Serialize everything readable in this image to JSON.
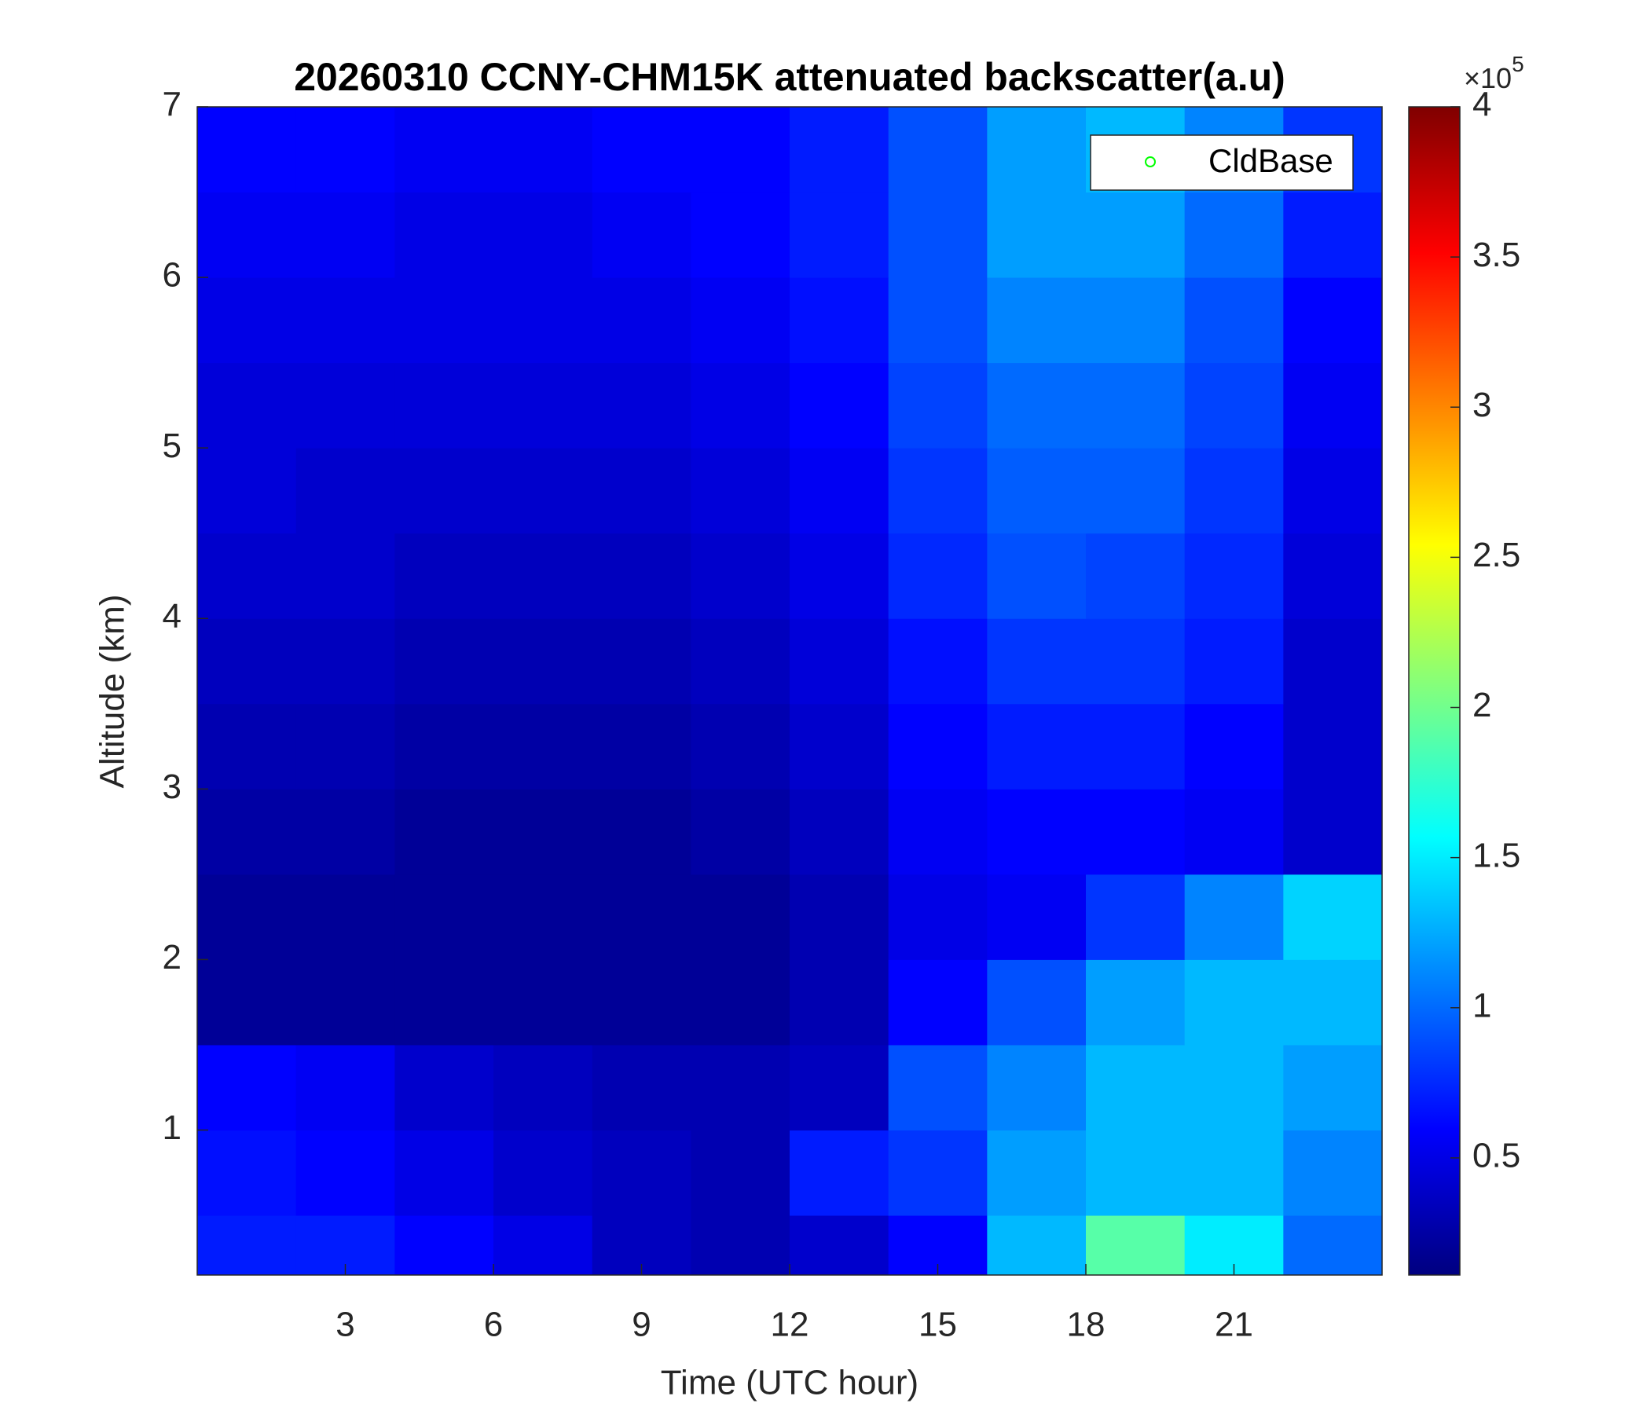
{
  "chart_data": {
    "type": "heatmap",
    "title": "20260310 CCNY-CHM15K attenuated backscatter(a.u)",
    "xlabel": "Time (UTC hour)",
    "ylabel": "Altitude (km)",
    "xlim": [
      0,
      24
    ],
    "ylim": [
      0.15,
      7
    ],
    "xticks": [
      3,
      6,
      9,
      12,
      15,
      18,
      21
    ],
    "yticks": [
      1,
      2,
      3,
      4,
      5,
      6,
      7
    ],
    "x_edges": [
      0,
      2,
      4,
      6,
      8,
      10,
      12,
      14,
      16,
      18,
      20,
      22,
      24
    ],
    "y_edges": [
      0.15,
      0.5,
      1,
      1.5,
      2,
      2.5,
      3,
      3.5,
      4,
      4.5,
      5,
      5.5,
      6,
      6.5,
      7
    ],
    "values": [
      [
        0.7,
        0.7,
        0.6,
        0.5,
        0.35,
        0.3,
        0.4,
        0.6,
        1.3,
        1.9,
        1.5,
        1.0
      ],
      [
        0.65,
        0.6,
        0.5,
        0.4,
        0.35,
        0.3,
        0.7,
        0.8,
        1.2,
        1.3,
        1.3,
        1.1
      ],
      [
        0.6,
        0.55,
        0.4,
        0.35,
        0.3,
        0.3,
        0.35,
        0.9,
        1.1,
        1.3,
        1.3,
        1.2
      ],
      [
        0.2,
        0.2,
        0.2,
        0.2,
        0.2,
        0.2,
        0.3,
        0.6,
        0.9,
        1.2,
        1.3,
        1.3
      ],
      [
        0.2,
        0.2,
        0.2,
        0.2,
        0.2,
        0.2,
        0.3,
        0.5,
        0.55,
        0.8,
        1.1,
        1.4
      ],
      [
        0.25,
        0.25,
        0.2,
        0.2,
        0.2,
        0.25,
        0.35,
        0.55,
        0.6,
        0.6,
        0.55,
        0.4
      ],
      [
        0.3,
        0.3,
        0.25,
        0.25,
        0.25,
        0.3,
        0.4,
        0.6,
        0.7,
        0.7,
        0.6,
        0.4
      ],
      [
        0.35,
        0.35,
        0.3,
        0.3,
        0.3,
        0.35,
        0.45,
        0.65,
        0.8,
        0.8,
        0.7,
        0.4
      ],
      [
        0.4,
        0.4,
        0.35,
        0.35,
        0.35,
        0.4,
        0.5,
        0.75,
        0.9,
        0.85,
        0.75,
        0.45
      ],
      [
        0.45,
        0.4,
        0.4,
        0.4,
        0.4,
        0.45,
        0.55,
        0.8,
        0.95,
        0.95,
        0.8,
        0.5
      ],
      [
        0.45,
        0.45,
        0.45,
        0.45,
        0.45,
        0.5,
        0.6,
        0.85,
        1.0,
        1.0,
        0.85,
        0.55
      ],
      [
        0.5,
        0.5,
        0.5,
        0.5,
        0.5,
        0.55,
        0.65,
        0.9,
        1.1,
        1.1,
        0.9,
        0.6
      ],
      [
        0.55,
        0.55,
        0.5,
        0.5,
        0.55,
        0.6,
        0.7,
        0.9,
        1.2,
        1.2,
        1.0,
        0.7
      ],
      [
        0.6,
        0.6,
        0.55,
        0.55,
        0.6,
        0.6,
        0.7,
        0.9,
        1.2,
        1.3,
        1.1,
        0.8
      ]
    ],
    "colormap": "jet",
    "colorbar": {
      "lim": [
        0.11,
        4
      ],
      "ticks": [
        0.5,
        1,
        1.5,
        2,
        2.5,
        3,
        3.5,
        4
      ],
      "multiplier": "×10",
      "exponent": "5"
    },
    "legend": {
      "labels": [
        "CldBase"
      ],
      "marker_color": "#00ff00",
      "location": "northeast"
    }
  }
}
